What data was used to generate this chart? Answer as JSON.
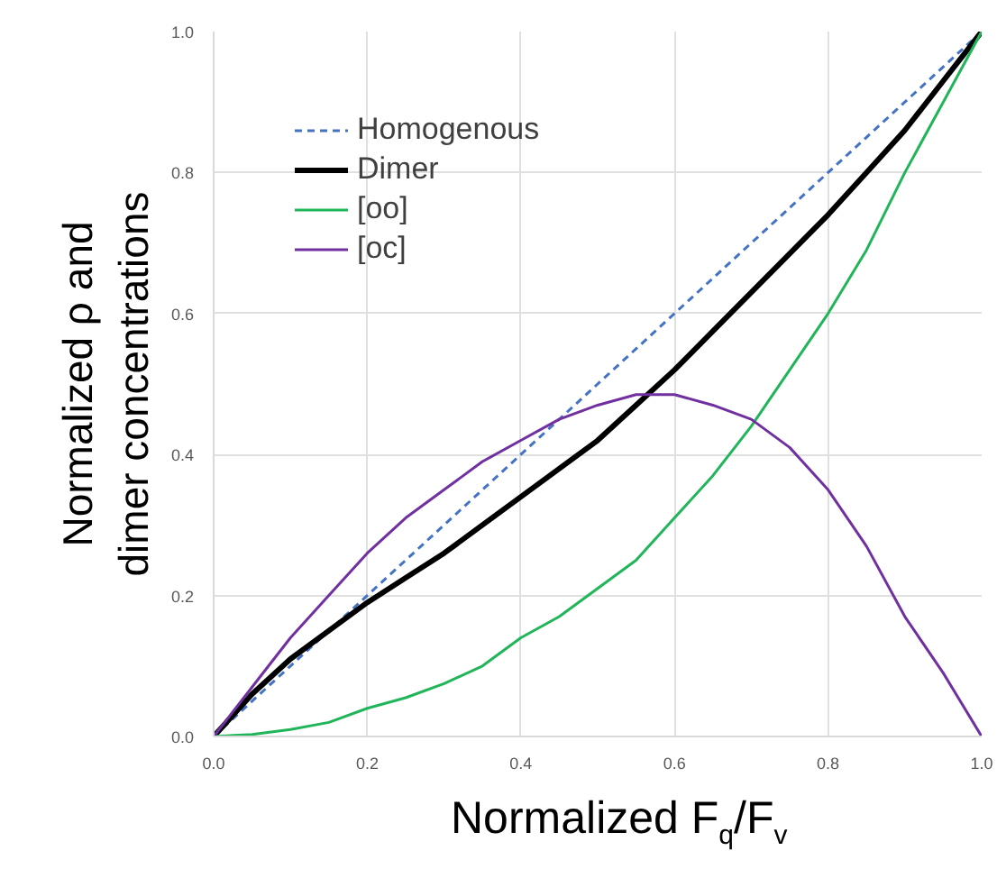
{
  "chart_data": {
    "type": "line",
    "xlabel": "Normalized F$_{q}$/F$_{v}$",
    "ylabel": "Normalized ρ and\ndimer concentrations",
    "x": [
      0,
      0.05,
      0.1,
      0.15,
      0.2,
      0.25,
      0.3,
      0.35,
      0.4,
      0.45,
      0.5,
      0.55,
      0.6,
      0.65,
      0.7,
      0.75,
      0.8,
      0.85,
      0.9,
      0.95,
      1
    ],
    "series": [
      {
        "name": "Homogenous",
        "color": "#4472c4",
        "line_style": "dashed",
        "values": [
          0,
          0.05,
          0.1,
          0.15,
          0.2,
          0.25,
          0.3,
          0.35,
          0.4,
          0.45,
          0.5,
          0.55,
          0.6,
          0.65,
          0.7,
          0.75,
          0.8,
          0.85,
          0.9,
          0.95,
          1
        ]
      },
      {
        "name": "Dimer",
        "color": "#000000",
        "values": [
          0,
          0.06,
          0.11,
          0.15,
          0.19,
          0.225,
          0.26,
          0.3,
          0.34,
          0.38,
          0.42,
          0.47,
          0.52,
          0.575,
          0.63,
          0.685,
          0.74,
          0.8,
          0.86,
          0.93,
          1
        ]
      },
      {
        "name": "[oo]",
        "color": "#21b55a",
        "values": [
          0,
          0.003,
          0.01,
          0.02,
          0.04,
          0.055,
          0.075,
          0.1,
          0.14,
          0.17,
          0.21,
          0.25,
          0.31,
          0.37,
          0.44,
          0.52,
          0.6,
          0.69,
          0.8,
          0.9,
          1
        ]
      },
      {
        "name": "[oc]",
        "color": "#7030a0",
        "values": [
          0,
          0.07,
          0.14,
          0.2,
          0.26,
          0.31,
          0.35,
          0.39,
          0.42,
          0.45,
          0.47,
          0.485,
          0.485,
          0.47,
          0.45,
          0.41,
          0.35,
          0.27,
          0.17,
          0.09,
          0
        ]
      }
    ],
    "xlim": [
      0,
      1
    ],
    "ylim": [
      0,
      1
    ],
    "xticks": [
      {
        "value": 0,
        "label": "0.0"
      },
      {
        "value": 0.2,
        "label": "0.2"
      },
      {
        "value": 0.4,
        "label": "0.4"
      },
      {
        "value": 0.6,
        "label": "0.6"
      },
      {
        "value": 0.8,
        "label": "0.8"
      },
      {
        "value": 1,
        "label": "1.0"
      }
    ],
    "yticks": [
      {
        "value": 0,
        "label": "0.0"
      },
      {
        "value": 0.2,
        "label": "0.2"
      },
      {
        "value": 0.4,
        "label": "0.4"
      },
      {
        "value": 0.6,
        "label": "0.6"
      },
      {
        "value": 0.8,
        "label": "0.8"
      },
      {
        "value": 1,
        "label": "1.0"
      }
    ],
    "grid": true,
    "legend": "top left",
    "marker": "none",
    "line_style": "solid"
  }
}
